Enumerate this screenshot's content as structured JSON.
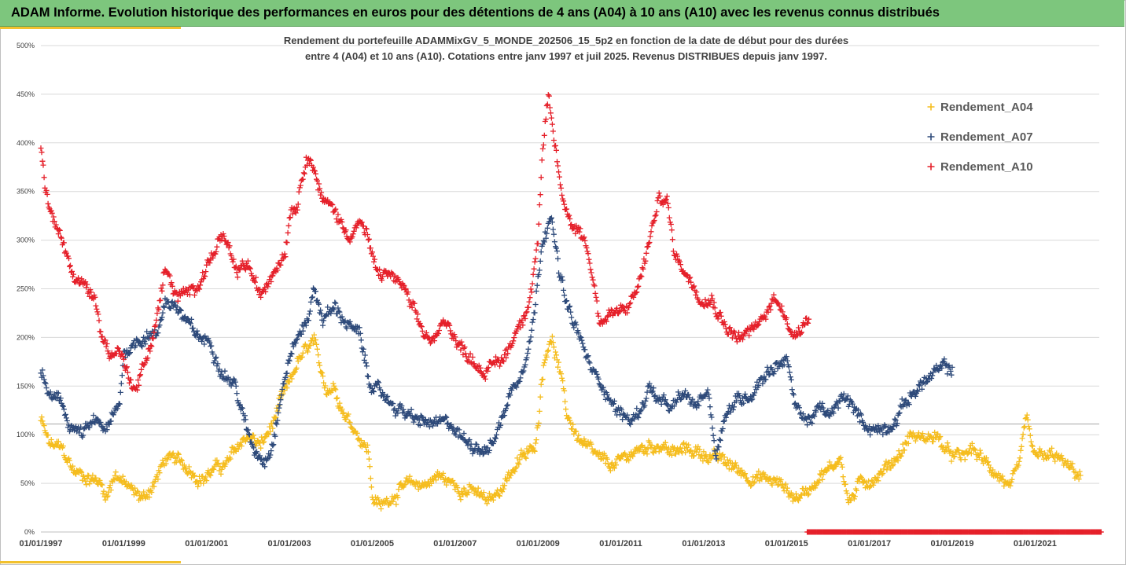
{
  "banner": {
    "title": "ADAM Informe. Evolution historique des performances en euros pour des détentions de 4 ans (A04) à 10 ans (A10) avec les revenus connus distribués"
  },
  "colors": {
    "banner": "#7dc67d",
    "accent": "#f2c12e",
    "A04": "#f5bd1f",
    "A07": "#2e4a7a",
    "A10": "#e5202a",
    "grid": "#d9d9d9"
  },
  "chart_data": {
    "type": "scatter",
    "title_lines": [
      "Rendement du portefeuille ADAMMixGV_5_MONDE_202506_15_5p2 en fonction de la date de début pour des durées",
      "entre 4 (A04) et 10 ans (A10). Cotations entre janv 1997 et juil 2025. Revenus DISTRIBUES depuis janv 1997."
    ],
    "xlabel": "",
    "ylabel": "",
    "xlim": [
      1997.0,
      2022.55
    ],
    "ylim": [
      0,
      500
    ],
    "y_ticks": [
      0,
      50,
      100,
      150,
      200,
      250,
      300,
      350,
      400,
      450,
      500
    ],
    "y_tick_labels": [
      "0%",
      "50%",
      "100%",
      "150%",
      "200%",
      "250%",
      "300%",
      "350%",
      "400%",
      "450%",
      "500%"
    ],
    "x_ticks": [
      1997,
      1999,
      2001,
      2003,
      2005,
      2007,
      2009,
      2011,
      2013,
      2015,
      2017,
      2019,
      2021
    ],
    "x_tick_labels": [
      "01/01/1997",
      "01/01/1999",
      "01/01/2001",
      "01/01/2003",
      "01/01/2005",
      "01/01/2007",
      "01/01/2009",
      "01/01/2011",
      "01/01/2013",
      "01/01/2015",
      "01/01/2017",
      "01/01/2019",
      "01/01/2021"
    ],
    "reference_line": 111,
    "grid": "horizontal",
    "legend_position": "top-right",
    "marker": "+",
    "series": [
      {
        "name": "Rendement_A04",
        "color": "#f5bd1f",
        "x_range": [
          1997.0,
          2022.1
        ],
        "y_anchors": [
          [
            1997.0,
            115
          ],
          [
            1997.2,
            90
          ],
          [
            1997.5,
            85
          ],
          [
            1997.8,
            62
          ],
          [
            1998.1,
            57
          ],
          [
            1998.4,
            52
          ],
          [
            1998.6,
            38
          ],
          [
            1998.8,
            62
          ],
          [
            1999.0,
            50
          ],
          [
            1999.3,
            38
          ],
          [
            1999.5,
            35
          ],
          [
            1999.8,
            55
          ],
          [
            2000.0,
            75
          ],
          [
            2000.3,
            72
          ],
          [
            2000.6,
            65
          ],
          [
            2000.9,
            55
          ],
          [
            2001.2,
            65
          ],
          [
            2001.5,
            70
          ],
          [
            2001.8,
            90
          ],
          [
            2002.0,
            100
          ],
          [
            2002.3,
            88
          ],
          [
            2002.6,
            110
          ],
          [
            2002.8,
            135
          ],
          [
            2003.0,
            150
          ],
          [
            2003.2,
            175
          ],
          [
            2003.4,
            185
          ],
          [
            2003.6,
            195
          ],
          [
            2003.7,
            170
          ],
          [
            2003.9,
            148
          ],
          [
            2004.1,
            150
          ],
          [
            2004.3,
            125
          ],
          [
            2004.6,
            105
          ],
          [
            2004.9,
            85
          ],
          [
            2005.0,
            38
          ],
          [
            2005.2,
            25
          ],
          [
            2005.4,
            35
          ],
          [
            2005.7,
            45
          ],
          [
            2006.0,
            48
          ],
          [
            2006.3,
            50
          ],
          [
            2006.6,
            58
          ],
          [
            2006.9,
            50
          ],
          [
            2007.2,
            45
          ],
          [
            2007.5,
            40
          ],
          [
            2007.8,
            30
          ],
          [
            2008.0,
            38
          ],
          [
            2008.3,
            60
          ],
          [
            2008.6,
            75
          ],
          [
            2008.9,
            85
          ],
          [
            2009.0,
            110
          ],
          [
            2009.1,
            165
          ],
          [
            2009.3,
            205
          ],
          [
            2009.5,
            170
          ],
          [
            2009.7,
            120
          ],
          [
            2010.0,
            95
          ],
          [
            2010.3,
            80
          ],
          [
            2010.6,
            70
          ],
          [
            2010.9,
            68
          ],
          [
            2011.2,
            80
          ],
          [
            2011.5,
            85
          ],
          [
            2011.8,
            90
          ],
          [
            2012.0,
            90
          ],
          [
            2012.3,
            80
          ],
          [
            2012.6,
            85
          ],
          [
            2012.9,
            82
          ],
          [
            2013.2,
            78
          ],
          [
            2013.5,
            72
          ],
          [
            2013.8,
            65
          ],
          [
            2014.1,
            58
          ],
          [
            2014.4,
            55
          ],
          [
            2014.7,
            52
          ],
          [
            2015.0,
            45
          ],
          [
            2015.2,
            35
          ],
          [
            2015.5,
            42
          ],
          [
            2015.8,
            60
          ],
          [
            2016.1,
            65
          ],
          [
            2016.3,
            80
          ],
          [
            2016.5,
            30
          ],
          [
            2016.8,
            50
          ],
          [
            2017.2,
            58
          ],
          [
            2017.5,
            70
          ],
          [
            2017.8,
            85
          ],
          [
            2018.0,
            100
          ],
          [
            2018.3,
            95
          ],
          [
            2018.6,
            100
          ],
          [
            2018.9,
            80
          ],
          [
            2019.2,
            75
          ],
          [
            2019.5,
            85
          ],
          [
            2019.8,
            70
          ],
          [
            2020.1,
            60
          ],
          [
            2020.4,
            45
          ],
          [
            2020.6,
            60
          ],
          [
            2020.8,
            120
          ],
          [
            2020.9,
            85
          ],
          [
            2021.2,
            75
          ],
          [
            2021.5,
            78
          ],
          [
            2021.8,
            65
          ],
          [
            2022.1,
            58
          ]
        ]
      },
      {
        "name": "Rendement_A07",
        "color": "#2e4a7a",
        "x_range": [
          1997.0,
          2019.0
        ],
        "y_anchors": [
          [
            1997.0,
            165
          ],
          [
            1997.2,
            140
          ],
          [
            1997.5,
            130
          ],
          [
            1997.7,
            110
          ],
          [
            1998.0,
            100
          ],
          [
            1998.3,
            112
          ],
          [
            1998.6,
            105
          ],
          [
            1998.9,
            130
          ],
          [
            1999.0,
            185
          ],
          [
            1999.3,
            195
          ],
          [
            1999.6,
            205
          ],
          [
            1999.8,
            200
          ],
          [
            2000.0,
            240
          ],
          [
            2000.3,
            230
          ],
          [
            2000.5,
            215
          ],
          [
            2000.8,
            200
          ],
          [
            2001.1,
            195
          ],
          [
            2001.4,
            165
          ],
          [
            2001.7,
            150
          ],
          [
            2001.9,
            115
          ],
          [
            2002.1,
            88
          ],
          [
            2002.4,
            75
          ],
          [
            2002.6,
            95
          ],
          [
            2002.8,
            140
          ],
          [
            2003.0,
            180
          ],
          [
            2003.2,
            200
          ],
          [
            2003.4,
            215
          ],
          [
            2003.6,
            250
          ],
          [
            2003.8,
            220
          ],
          [
            2004.1,
            230
          ],
          [
            2004.4,
            215
          ],
          [
            2004.7,
            200
          ],
          [
            2004.9,
            160
          ],
          [
            2005.1,
            145
          ],
          [
            2005.4,
            135
          ],
          [
            2005.7,
            125
          ],
          [
            2006.0,
            115
          ],
          [
            2006.3,
            112
          ],
          [
            2006.6,
            110
          ],
          [
            2006.9,
            110
          ],
          [
            2007.2,
            95
          ],
          [
            2007.5,
            90
          ],
          [
            2007.8,
            85
          ],
          [
            2008.0,
            100
          ],
          [
            2008.3,
            140
          ],
          [
            2008.6,
            165
          ],
          [
            2008.9,
            220
          ],
          [
            2009.1,
            300
          ],
          [
            2009.3,
            330
          ],
          [
            2009.5,
            270
          ],
          [
            2009.7,
            230
          ],
          [
            2010.0,
            200
          ],
          [
            2010.3,
            165
          ],
          [
            2010.6,
            150
          ],
          [
            2010.9,
            125
          ],
          [
            2011.2,
            115
          ],
          [
            2011.4,
            120
          ],
          [
            2011.7,
            150
          ],
          [
            2011.9,
            135
          ],
          [
            2012.2,
            125
          ],
          [
            2012.5,
            140
          ],
          [
            2012.8,
            130
          ],
          [
            2013.1,
            148
          ],
          [
            2013.3,
            80
          ],
          [
            2013.5,
            120
          ],
          [
            2013.8,
            135
          ],
          [
            2014.1,
            140
          ],
          [
            2014.4,
            160
          ],
          [
            2014.7,
            170
          ],
          [
            2015.0,
            180
          ],
          [
            2015.2,
            130
          ],
          [
            2015.5,
            115
          ],
          [
            2015.8,
            125
          ],
          [
            2016.1,
            120
          ],
          [
            2016.4,
            140
          ],
          [
            2016.7,
            120
          ],
          [
            2017.0,
            108
          ],
          [
            2017.3,
            105
          ],
          [
            2017.6,
            115
          ],
          [
            2017.9,
            135
          ],
          [
            2018.2,
            150
          ],
          [
            2018.5,
            160
          ],
          [
            2018.8,
            168
          ],
          [
            2019.0,
            168
          ]
        ]
      },
      {
        "name": "Rendement_A10",
        "color": "#e5202a",
        "x_range": [
          1997.0,
          2015.55
        ],
        "y_anchors": [
          [
            1997.0,
            395
          ],
          [
            1997.1,
            355
          ],
          [
            1997.3,
            320
          ],
          [
            1997.6,
            290
          ],
          [
            1997.8,
            260
          ],
          [
            1998.0,
            255
          ],
          [
            1998.3,
            240
          ],
          [
            1998.5,
            200
          ],
          [
            1998.7,
            180
          ],
          [
            1998.9,
            190
          ],
          [
            1999.1,
            160
          ],
          [
            1999.3,
            150
          ],
          [
            1999.6,
            185
          ],
          [
            1999.8,
            220
          ],
          [
            2000.0,
            270
          ],
          [
            2000.3,
            240
          ],
          [
            2000.6,
            245
          ],
          [
            2000.9,
            265
          ],
          [
            2001.2,
            290
          ],
          [
            2001.4,
            305
          ],
          [
            2001.7,
            265
          ],
          [
            2002.0,
            275
          ],
          [
            2002.3,
            240
          ],
          [
            2002.6,
            270
          ],
          [
            2002.9,
            290
          ],
          [
            2003.0,
            330
          ],
          [
            2003.2,
            340
          ],
          [
            2003.4,
            390
          ],
          [
            2003.6,
            375
          ],
          [
            2003.8,
            340
          ],
          [
            2004.1,
            330
          ],
          [
            2004.4,
            305
          ],
          [
            2004.7,
            320
          ],
          [
            2004.9,
            300
          ],
          [
            2005.1,
            265
          ],
          [
            2005.4,
            265
          ],
          [
            2005.7,
            255
          ],
          [
            2006.0,
            225
          ],
          [
            2006.2,
            205
          ],
          [
            2006.5,
            195
          ],
          [
            2006.8,
            220
          ],
          [
            2007.1,
            190
          ],
          [
            2007.4,
            180
          ],
          [
            2007.7,
            165
          ],
          [
            2007.9,
            170
          ],
          [
            2008.2,
            180
          ],
          [
            2008.5,
            210
          ],
          [
            2008.8,
            240
          ],
          [
            2009.0,
            300
          ],
          [
            2009.1,
            380
          ],
          [
            2009.25,
            445
          ],
          [
            2009.4,
            400
          ],
          [
            2009.6,
            340
          ],
          [
            2009.8,
            320
          ],
          [
            2010.1,
            305
          ],
          [
            2010.3,
            270
          ],
          [
            2010.5,
            215
          ],
          [
            2010.8,
            225
          ],
          [
            2011.1,
            225
          ],
          [
            2011.4,
            250
          ],
          [
            2011.7,
            300
          ],
          [
            2011.9,
            340
          ],
          [
            2012.1,
            345
          ],
          [
            2012.3,
            285
          ],
          [
            2012.6,
            265
          ],
          [
            2012.9,
            245
          ],
          [
            2013.2,
            240
          ],
          [
            2013.5,
            215
          ],
          [
            2013.8,
            200
          ],
          [
            2014.1,
            205
          ],
          [
            2014.4,
            215
          ],
          [
            2014.7,
            240
          ],
          [
            2014.9,
            235
          ],
          [
            2015.1,
            200
          ],
          [
            2015.3,
            210
          ],
          [
            2015.55,
            225
          ]
        ]
      }
    ],
    "zero_band": {
      "series": "Rendement_A10",
      "x_range": [
        2015.5,
        2022.6
      ],
      "y": 0
    }
  }
}
